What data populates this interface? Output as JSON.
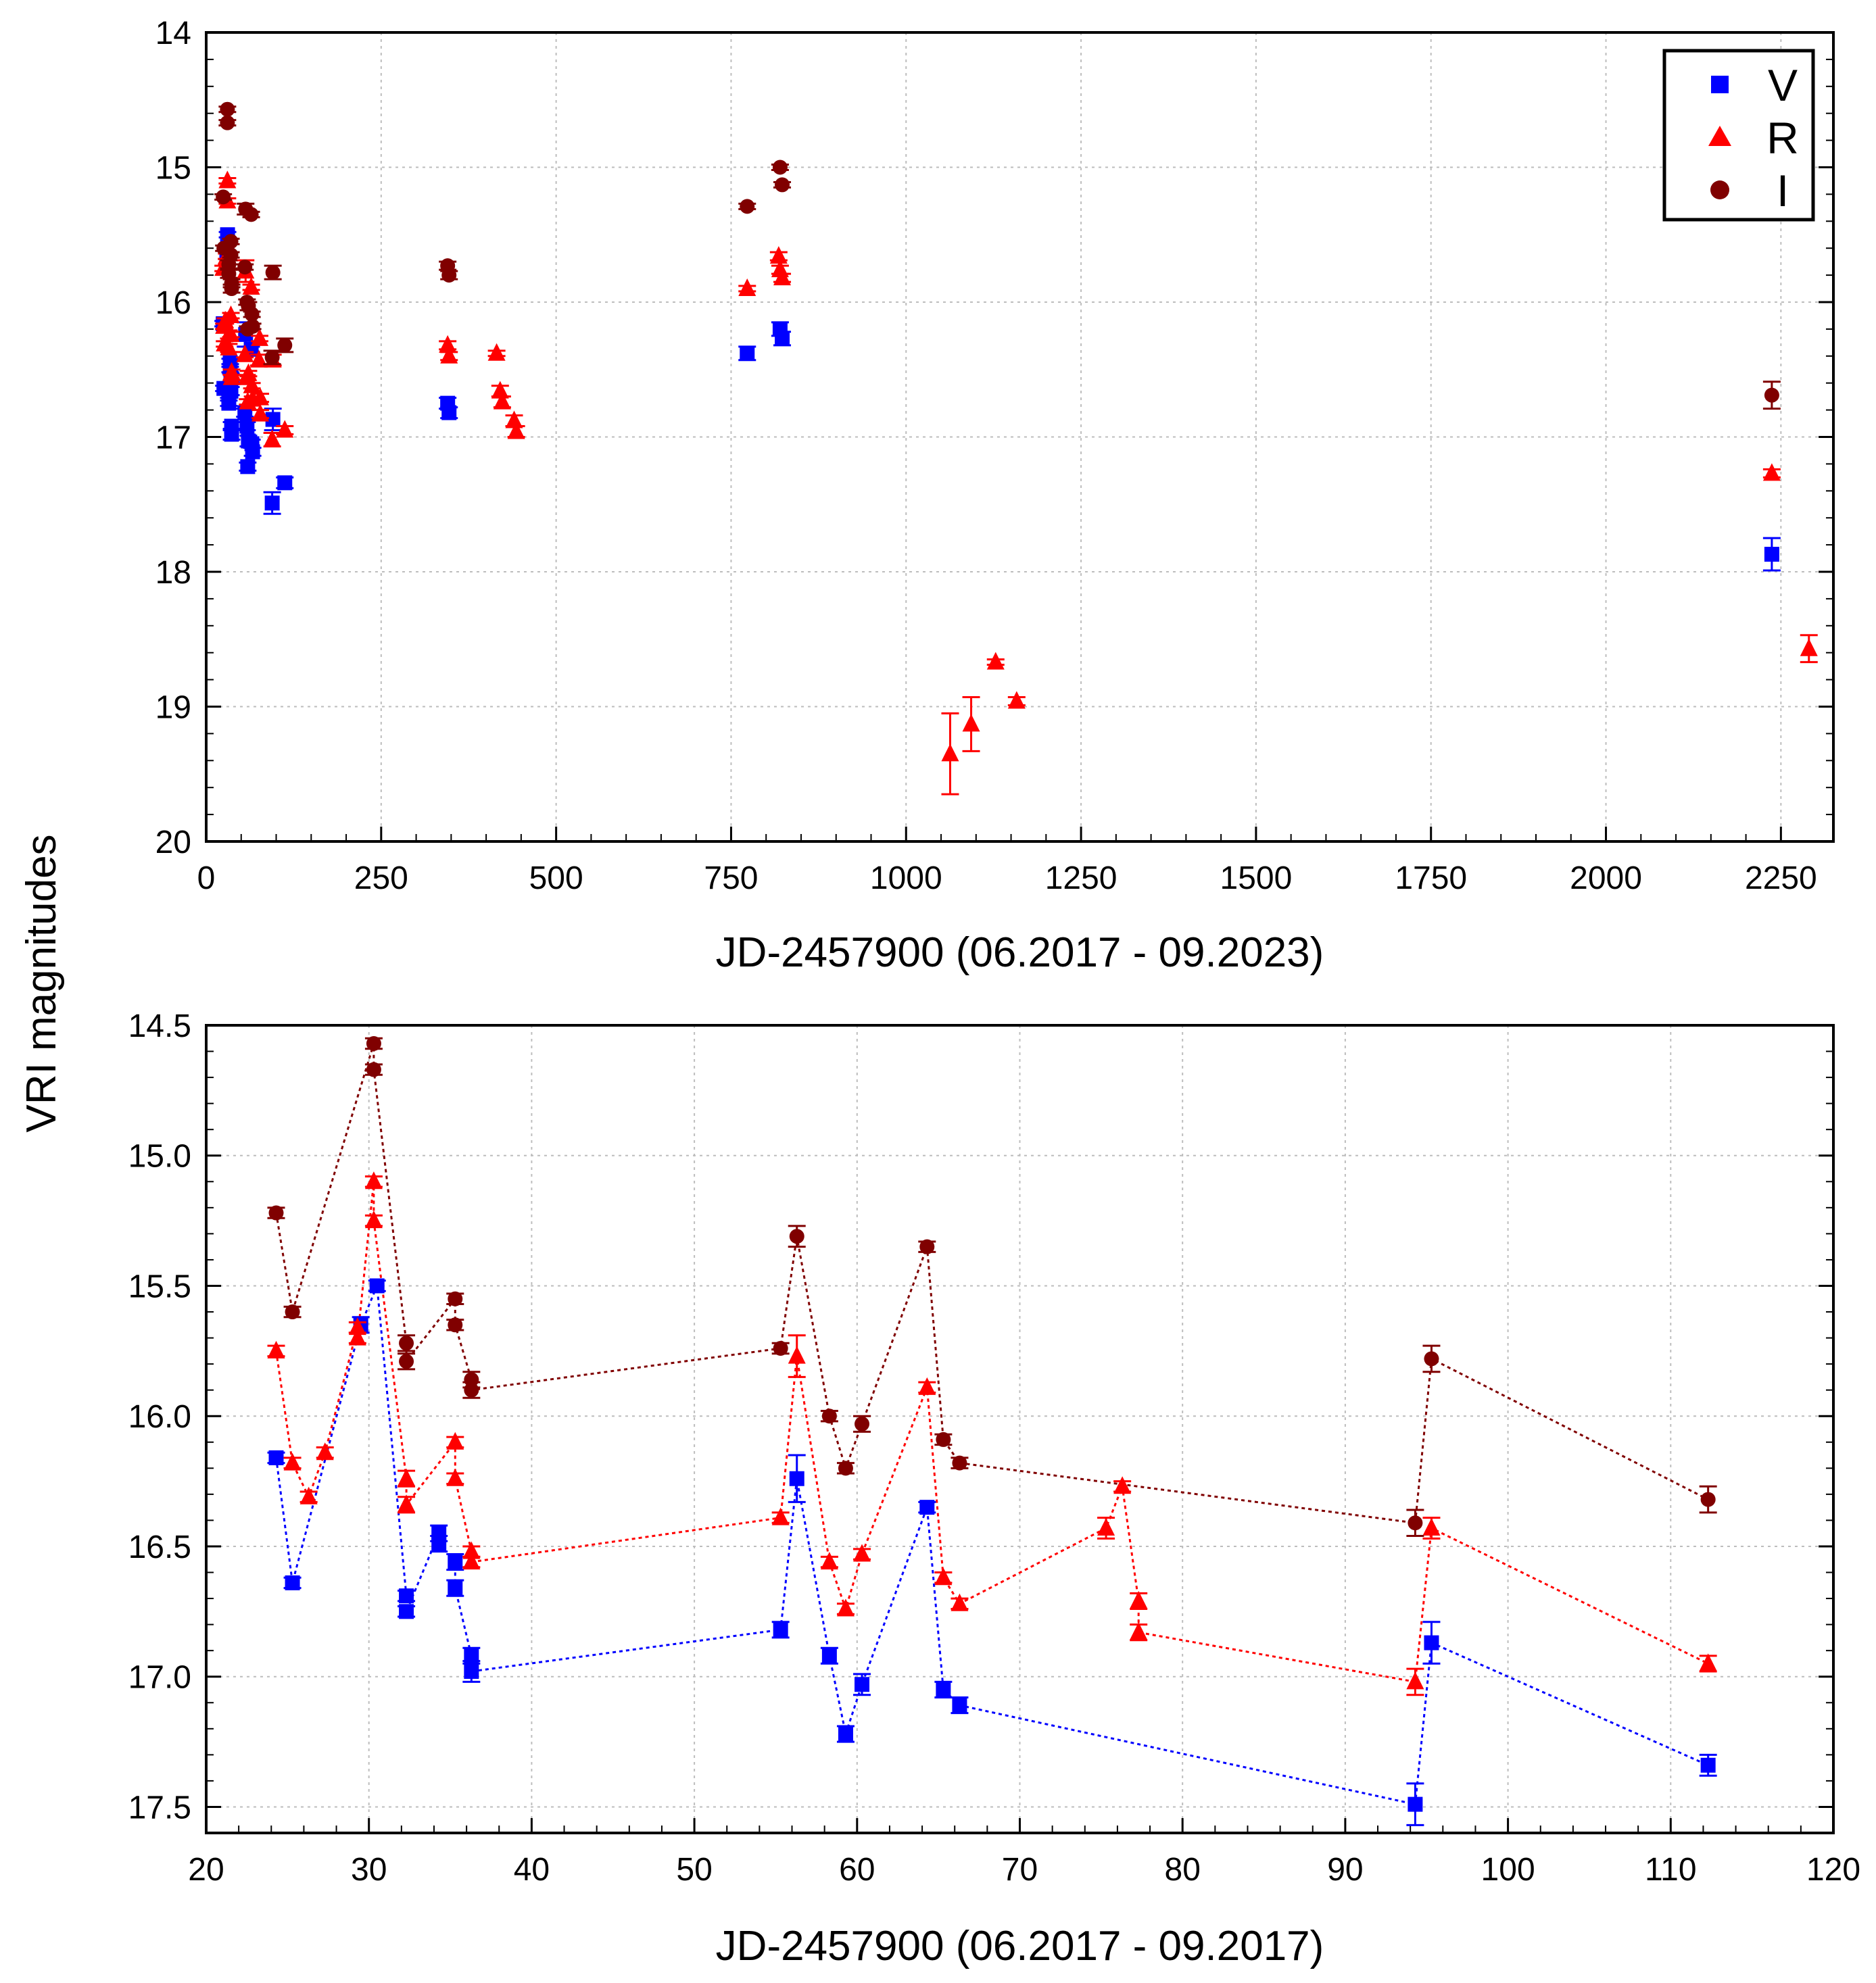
{
  "colors": {
    "V": "#0000ff",
    "R": "#ff0000",
    "I": "#800000"
  },
  "shared_ylabel": "VRI magnitudes",
  "chart_data": [
    {
      "id": "top",
      "type": "scatter",
      "xlabel": "JD-2457900 (06.2017 - 09.2023)",
      "xlim": [
        0,
        2325
      ],
      "ylim": [
        20,
        14
      ],
      "xticks": [
        0,
        250,
        500,
        750,
        1000,
        1250,
        1500,
        1750,
        2000,
        2250
      ],
      "xtick_labels": [
        "0",
        "250",
        "500",
        "750",
        "1000",
        "1250",
        "1500",
        "1750",
        "2000",
        "2250"
      ],
      "yticks": [
        14,
        15,
        16,
        17,
        18,
        19,
        20
      ],
      "ytick_labels": [
        "14",
        "15",
        "16",
        "17",
        "18",
        "19",
        "20"
      ],
      "grid": true,
      "connect_lines": false,
      "legend": {
        "position": "top-right",
        "entries": [
          {
            "name": "V",
            "marker": "square",
            "color": "#0000ff"
          },
          {
            "name": "R",
            "marker": "triangle",
            "color": "#ff0000"
          },
          {
            "name": "I",
            "marker": "circle",
            "color": "#800000"
          }
        ]
      },
      "series": [
        {
          "name": "V",
          "marker": "square",
          "color": "#0000ff",
          "points": [
            [
              24.3,
              16.16,
              0.02
            ],
            [
              25.3,
              16.64,
              0.02
            ],
            [
              29.5,
              15.65,
              0.03
            ],
            [
              30.5,
              15.5,
              0.02
            ],
            [
              32.3,
              16.69,
              0.02
            ],
            [
              32.3,
              16.75,
              0.02
            ],
            [
              34.3,
              16.45,
              0.03
            ],
            [
              34.3,
              16.49,
              0.03
            ],
            [
              35.3,
              16.56,
              0.03
            ],
            [
              35.3,
              16.66,
              0.03
            ],
            [
              36.3,
              16.92,
              0.03
            ],
            [
              36.3,
              16.98,
              0.04
            ],
            [
              55.3,
              16.82,
              0.03
            ],
            [
              56.3,
              16.24,
              0.09
            ],
            [
              58.3,
              16.92,
              0.03
            ],
            [
              59.3,
              17.22,
              0.03
            ],
            [
              60.3,
              17.03,
              0.04
            ],
            [
              64.3,
              16.35,
              0.02
            ],
            [
              65.3,
              17.05,
              0.03
            ],
            [
              66.3,
              17.11,
              0.03
            ],
            [
              94.3,
              17.49,
              0.08
            ],
            [
              95.3,
              16.87,
              0.08
            ],
            [
              112.3,
              17.34,
              0.04
            ],
            [
              345,
              16.75,
              0.04
            ],
            [
              347,
              16.82,
              0.04
            ],
            [
              773,
              16.38,
              0.05
            ],
            [
              820,
              16.2,
              0.05
            ],
            [
              823,
              16.27,
              0.05
            ],
            [
              2237,
              17.87,
              0.12
            ]
          ]
        },
        {
          "name": "R",
          "marker": "triangle",
          "color": "#ff0000",
          "points": [
            [
              24.3,
              15.75,
              0.02
            ],
            [
              25.3,
              16.18,
              0.02
            ],
            [
              26.3,
              16.31,
              0.02
            ],
            [
              27.3,
              16.14,
              0.02
            ],
            [
              29.3,
              15.66,
              0.02
            ],
            [
              29.3,
              15.7,
              0.02
            ],
            [
              30.3,
              15.1,
              0.02
            ],
            [
              30.3,
              15.25,
              0.02
            ],
            [
              32.3,
              16.24,
              0.03
            ],
            [
              32.3,
              16.34,
              0.03
            ],
            [
              35.3,
              16.1,
              0.02
            ],
            [
              35.3,
              16.24,
              0.02
            ],
            [
              36.3,
              16.52,
              0.02
            ],
            [
              36.3,
              16.56,
              0.02
            ],
            [
              55.3,
              16.39,
              0.02
            ],
            [
              56.3,
              15.77,
              0.08
            ],
            [
              58.3,
              16.56,
              0.02
            ],
            [
              59.3,
              16.74,
              0.02
            ],
            [
              60.3,
              16.53,
              0.02
            ],
            [
              64.3,
              15.89,
              0.02
            ],
            [
              65.3,
              16.62,
              0.02
            ],
            [
              66.3,
              16.72,
              0.02
            ],
            [
              75.3,
              16.43,
              0.04
            ],
            [
              76.3,
              16.27,
              0.02
            ],
            [
              77.3,
              16.71,
              0.03
            ],
            [
              77.3,
              16.83,
              0.03
            ],
            [
              94.3,
              17.02,
              0.05
            ],
            [
              95.3,
              16.43,
              0.04
            ],
            [
              112.3,
              16.95,
              0.03
            ],
            [
              345,
              16.32,
              0.03
            ],
            [
              347,
              16.4,
              0.03
            ],
            [
              415,
              16.38,
              0.02
            ],
            [
              420,
              16.66,
              0.04
            ],
            [
              423,
              16.74,
              0.04
            ],
            [
              440,
              16.88,
              0.04
            ],
            [
              443,
              16.96,
              0.04
            ],
            [
              773,
              15.9,
              0.02
            ],
            [
              818,
              15.66,
              0.03
            ],
            [
              820,
              15.76,
              0.03
            ],
            [
              823,
              15.82,
              0.03
            ],
            [
              1063,
              19.35,
              0.3
            ],
            [
              1093,
              19.13,
              0.2
            ],
            [
              1128,
              18.67,
              0.02
            ],
            [
              1158,
              18.96,
              0.03
            ],
            [
              2237,
              17.27,
              0.03
            ],
            [
              2290,
              18.57,
              0.1
            ]
          ]
        },
        {
          "name": "I",
          "marker": "circle",
          "color": "#800000",
          "points": [
            [
              24.3,
              15.22,
              0.02
            ],
            [
              25.3,
              15.6,
              0.02
            ],
            [
              30.3,
              14.57,
              0.02
            ],
            [
              30.3,
              14.67,
              0.02
            ],
            [
              32.3,
              15.72,
              0.03
            ],
            [
              32.3,
              15.79,
              0.03
            ],
            [
              35.3,
              15.55,
              0.02
            ],
            [
              35.3,
              15.65,
              0.02
            ],
            [
              36.3,
              15.86,
              0.03
            ],
            [
              36.3,
              15.9,
              0.03
            ],
            [
              55.3,
              15.74,
              0.02
            ],
            [
              56.3,
              15.31,
              0.04
            ],
            [
              58.3,
              16.0,
              0.02
            ],
            [
              59.3,
              16.2,
              0.02
            ],
            [
              60.3,
              16.03,
              0.03
            ],
            [
              64.3,
              15.35,
              0.02
            ],
            [
              65.3,
              16.09,
              0.02
            ],
            [
              66.3,
              16.18,
              0.02
            ],
            [
              94.3,
              16.41,
              0.05
            ],
            [
              95.3,
              15.78,
              0.05
            ],
            [
              112.3,
              16.32,
              0.05
            ],
            [
              345,
              15.73,
              0.03
            ],
            [
              347,
              15.8,
              0.03
            ],
            [
              773,
              15.29,
              0.02
            ],
            [
              820,
              15.0,
              0.02
            ],
            [
              823,
              15.13,
              0.02
            ],
            [
              2237,
              16.69,
              0.1
            ]
          ]
        }
      ]
    },
    {
      "id": "bottom",
      "type": "line",
      "xlabel": "JD-2457900 (06.2017 - 09.2017)",
      "xlim": [
        20,
        120
      ],
      "ylim": [
        17.6,
        14.5
      ],
      "xticks": [
        20,
        30,
        40,
        50,
        60,
        70,
        80,
        90,
        100,
        110,
        120
      ],
      "xtick_labels": [
        "20",
        "30",
        "40",
        "50",
        "60",
        "70",
        "80",
        "90",
        "100",
        "110",
        "120"
      ],
      "yticks": [
        14.5,
        15.0,
        15.5,
        16.0,
        16.5,
        17.0,
        17.5
      ],
      "ytick_labels": [
        "14.5",
        "15.0",
        "15.5",
        "16.0",
        "16.5",
        "17.0",
        "17.5"
      ],
      "grid": true,
      "connect_lines": true,
      "series": [
        {
          "name": "V",
          "marker": "square",
          "color": "#0000ff",
          "points": [
            [
              24.3,
              16.16,
              0.02
            ],
            [
              25.3,
              16.64,
              0.02
            ],
            [
              29.5,
              15.65,
              0.03
            ],
            [
              30.5,
              15.5,
              0.02
            ],
            [
              32.3,
              16.69,
              0.02
            ],
            [
              32.3,
              16.75,
              0.02
            ],
            [
              34.3,
              16.45,
              0.03
            ],
            [
              34.3,
              16.49,
              0.03
            ],
            [
              35.3,
              16.56,
              0.03
            ],
            [
              35.3,
              16.66,
              0.03
            ],
            [
              36.3,
              16.92,
              0.03
            ],
            [
              36.3,
              16.98,
              0.04
            ],
            [
              55.3,
              16.82,
              0.03
            ],
            [
              56.3,
              16.24,
              0.09
            ],
            [
              58.3,
              16.92,
              0.03
            ],
            [
              59.3,
              17.22,
              0.03
            ],
            [
              60.3,
              17.03,
              0.04
            ],
            [
              64.3,
              16.35,
              0.02
            ],
            [
              65.3,
              17.05,
              0.03
            ],
            [
              66.3,
              17.11,
              0.03
            ],
            [
              94.3,
              17.49,
              0.08
            ],
            [
              95.3,
              16.87,
              0.08
            ],
            [
              112.3,
              17.34,
              0.04
            ]
          ]
        },
        {
          "name": "R",
          "marker": "triangle",
          "color": "#ff0000",
          "points": [
            [
              24.3,
              15.75,
              0.02
            ],
            [
              25.3,
              16.18,
              0.02
            ],
            [
              26.3,
              16.31,
              0.02
            ],
            [
              27.3,
              16.14,
              0.02
            ],
            [
              29.3,
              15.66,
              0.02
            ],
            [
              29.3,
              15.7,
              0.02
            ],
            [
              30.3,
              15.1,
              0.02
            ],
            [
              30.3,
              15.25,
              0.02
            ],
            [
              32.3,
              16.24,
              0.03
            ],
            [
              32.3,
              16.34,
              0.03
            ],
            [
              35.3,
              16.1,
              0.02
            ],
            [
              35.3,
              16.24,
              0.02
            ],
            [
              36.3,
              16.52,
              0.02
            ],
            [
              36.3,
              16.56,
              0.02
            ],
            [
              55.3,
              16.39,
              0.02
            ],
            [
              56.3,
              15.77,
              0.08
            ],
            [
              58.3,
              16.56,
              0.02
            ],
            [
              59.3,
              16.74,
              0.02
            ],
            [
              60.3,
              16.53,
              0.02
            ],
            [
              64.3,
              15.89,
              0.02
            ],
            [
              65.3,
              16.62,
              0.02
            ],
            [
              66.3,
              16.72,
              0.02
            ],
            [
              75.3,
              16.43,
              0.04
            ],
            [
              76.3,
              16.27,
              0.02
            ],
            [
              77.3,
              16.71,
              0.03
            ],
            [
              77.3,
              16.83,
              0.03
            ],
            [
              94.3,
              17.02,
              0.05
            ],
            [
              95.3,
              16.43,
              0.04
            ],
            [
              112.3,
              16.95,
              0.03
            ]
          ]
        },
        {
          "name": "I",
          "marker": "circle",
          "color": "#800000",
          "points": [
            [
              24.3,
              15.22,
              0.02
            ],
            [
              25.3,
              15.6,
              0.02
            ],
            [
              30.3,
              14.57,
              0.02
            ],
            [
              30.3,
              14.67,
              0.02
            ],
            [
              32.3,
              15.72,
              0.03
            ],
            [
              32.3,
              15.79,
              0.03
            ],
            [
              35.3,
              15.55,
              0.02
            ],
            [
              35.3,
              15.65,
              0.02
            ],
            [
              36.3,
              15.86,
              0.03
            ],
            [
              36.3,
              15.9,
              0.03
            ],
            [
              55.3,
              15.74,
              0.02
            ],
            [
              56.3,
              15.31,
              0.04
            ],
            [
              58.3,
              16.0,
              0.02
            ],
            [
              59.3,
              16.2,
              0.02
            ],
            [
              60.3,
              16.03,
              0.03
            ],
            [
              64.3,
              15.35,
              0.02
            ],
            [
              65.3,
              16.09,
              0.02
            ],
            [
              66.3,
              16.18,
              0.02
            ],
            [
              94.3,
              16.41,
              0.05
            ],
            [
              95.3,
              15.78,
              0.05
            ],
            [
              112.3,
              16.32,
              0.05
            ]
          ]
        }
      ]
    }
  ]
}
